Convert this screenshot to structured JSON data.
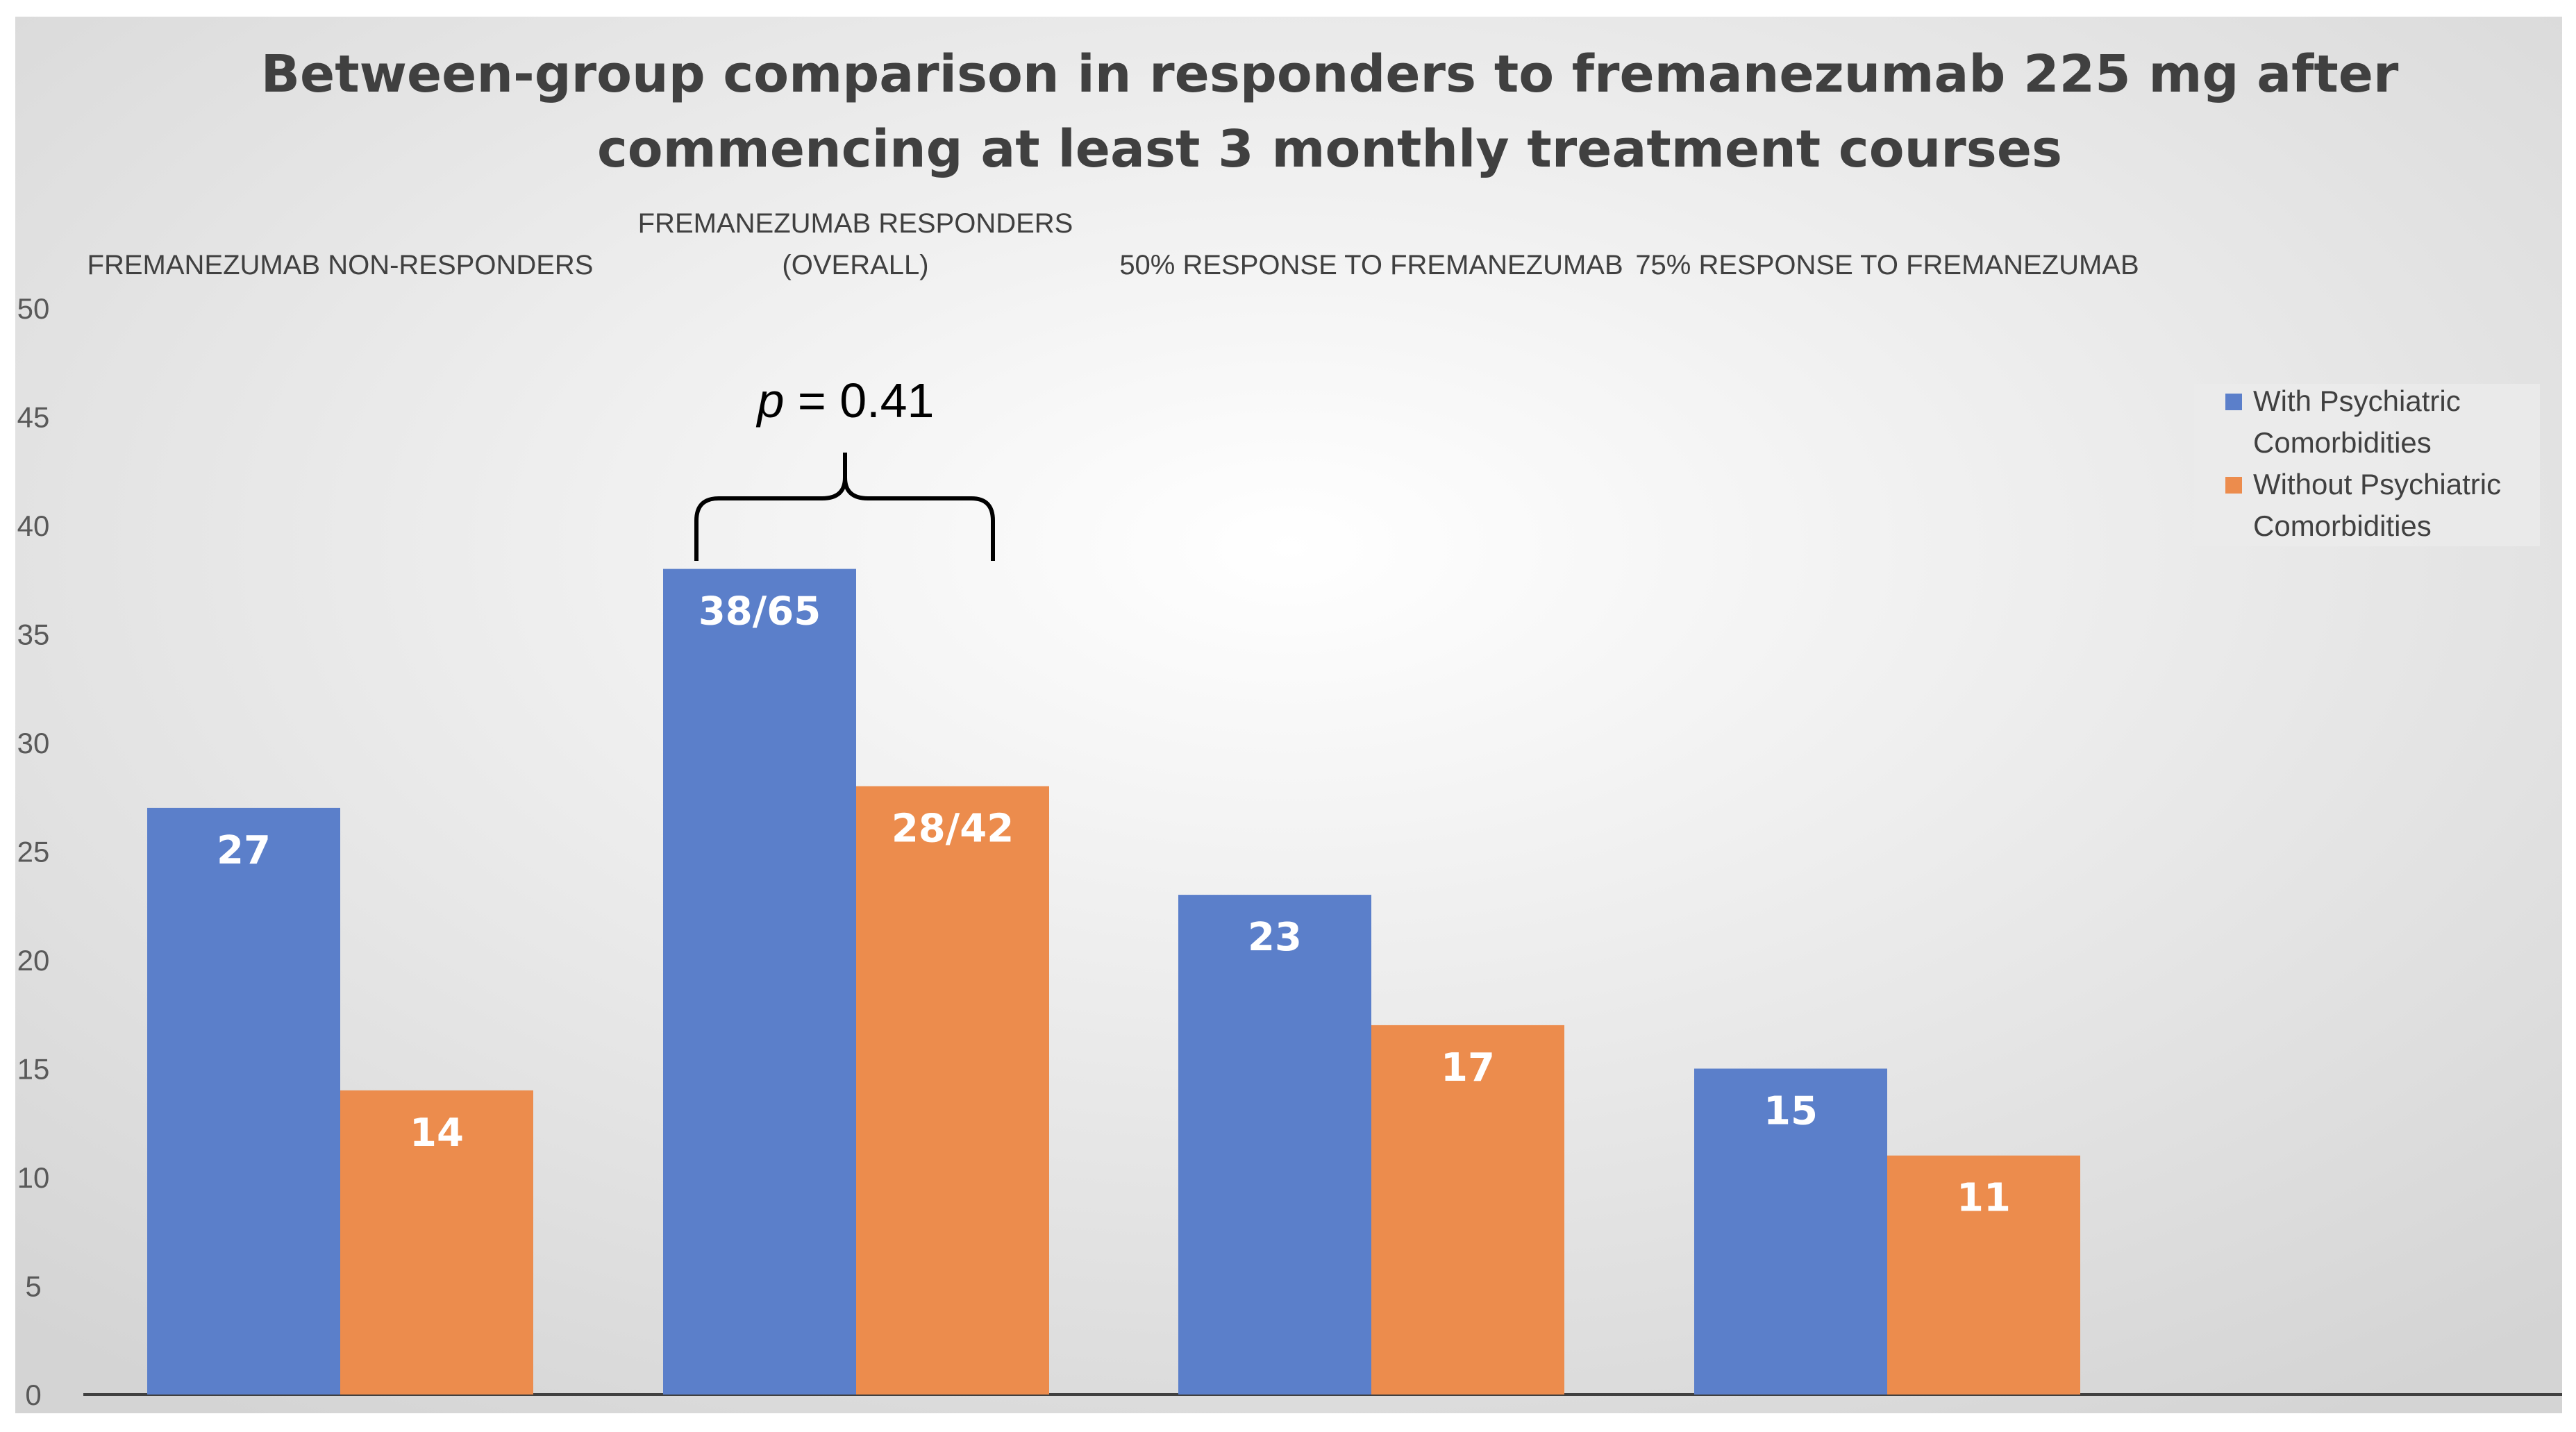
{
  "chart_data": {
    "type": "bar",
    "title_lines": [
      "Between-group comparison in responders to fremanezumab 225 mg after",
      "commencing at least 3 monthly treatment courses"
    ],
    "categories": [
      "FREMANEZUMAB NON-RESPONDERS",
      "FREMANEZUMAB RESPONDERS (OVERALL)",
      "50% RESPONSE TO FREMANEZUMAB",
      "75% RESPONSE TO FREMANEZUMAB"
    ],
    "category_label_lines": [
      [
        "FREMANEZUMAB NON-RESPONDERS"
      ],
      [
        "FREMANEZUMAB RESPONDERS",
        "(OVERALL)"
      ],
      [
        "50% RESPONSE TO FREMANEZUMAB"
      ],
      [
        "75% RESPONSE TO FREMANEZUMAB"
      ]
    ],
    "series": [
      {
        "name": "With Psychiatric Comorbidities",
        "color": "#5b7fca",
        "values": [
          27,
          38,
          23,
          15
        ],
        "data_labels": [
          "27",
          "38/65",
          "23",
          "15"
        ]
      },
      {
        "name": "Without Psychiatric Comorbidities",
        "color": "#ec8c4d",
        "values": [
          14,
          28,
          17,
          11
        ],
        "data_labels": [
          "14",
          "28/42",
          "17",
          "11"
        ]
      }
    ],
    "legend_lines": [
      [
        "With Psychiatric",
        "Comorbidities"
      ],
      [
        "Without Psychiatric",
        "Comorbidities"
      ]
    ],
    "y_ticks": [
      0,
      5,
      10,
      15,
      20,
      25,
      30,
      35,
      40,
      45,
      50
    ],
    "ylim": [
      0,
      50
    ],
    "grid": false,
    "legend_position": "right",
    "annotation": {
      "p_symbol": "p",
      "p_rest": " = 0.41",
      "category_index": 1
    }
  }
}
